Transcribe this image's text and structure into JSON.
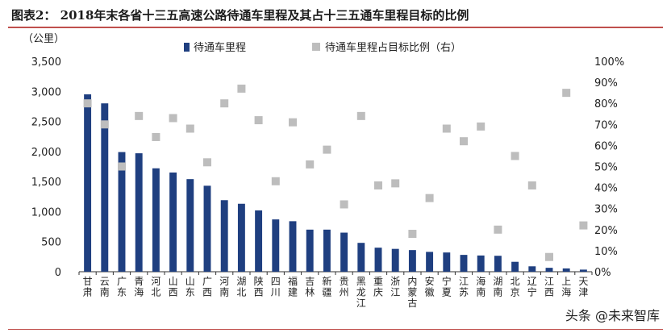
{
  "header": {
    "title": "图表2： 2018年末各省十三五高速公路待通车里程及其占十三五通车里程目标的比例"
  },
  "watermark": "头条 @未来智库",
  "chart_data": {
    "type": "bar",
    "ylabel": "（公里）",
    "ylim": [
      0,
      3500
    ],
    "yticks": [
      "0",
      "500",
      "1,000",
      "1,500",
      "2,000",
      "2,500",
      "3,000",
      "3,500"
    ],
    "y2lim": [
      0,
      100
    ],
    "y2ticks": [
      "0%",
      "10%",
      "20%",
      "30%",
      "40%",
      "50%",
      "60%",
      "70%",
      "80%",
      "90%",
      "100%"
    ],
    "legend_placement": "top",
    "grid": false,
    "colors": {
      "bar": "#1f3f80",
      "marker": "#bdbdbd"
    },
    "categories": [
      "甘肃",
      "云南",
      "广东",
      "青海",
      "河北",
      "山西",
      "山东",
      "广西",
      "河南",
      "湖北",
      "陕西",
      "四川",
      "福建",
      "吉林",
      "新疆",
      "贵州",
      "黑龙江",
      "重庆",
      "浙江",
      "内蒙古",
      "安徽",
      "宁夏",
      "江苏",
      "海南",
      "湖南",
      "北京",
      "辽宁",
      "江西",
      "上海",
      "天津"
    ],
    "series": [
      {
        "name": "待通车里程",
        "type": "bar",
        "axis": "left",
        "values": [
          2950,
          2800,
          1990,
          1970,
          1720,
          1650,
          1540,
          1430,
          1190,
          1130,
          1020,
          870,
          840,
          700,
          700,
          650,
          480,
          400,
          380,
          360,
          330,
          320,
          280,
          270,
          265,
          165,
          90,
          65,
          55,
          35
        ]
      },
      {
        "name": "待通车里程占目标比例（右）",
        "type": "scatter",
        "axis": "right",
        "values": [
          80,
          70,
          50,
          74,
          64,
          73,
          68,
          52,
          80,
          87,
          72,
          43,
          71,
          51,
          58,
          32,
          74,
          41,
          42,
          18,
          35,
          68,
          62,
          69,
          20,
          55,
          41,
          7,
          85,
          22
        ]
      }
    ]
  }
}
